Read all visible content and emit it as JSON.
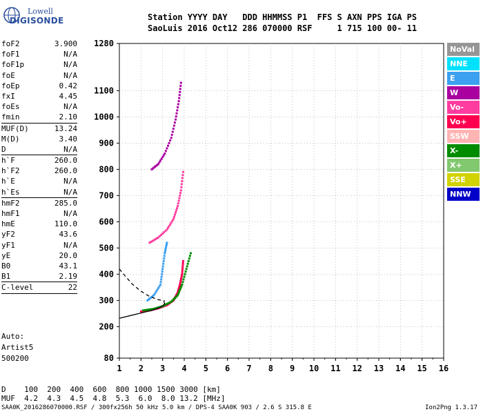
{
  "logo": {
    "top": "Lowell",
    "main": "DIGISONDE"
  },
  "header": {
    "line1": "Station YYYY DAY   DDD HHMMSS P1  FFS S AXN PPS IGA PS",
    "line2": "SaoLuis 2016 Oct12 286 070000 RSF     1 715 100 00- 11"
  },
  "params_group1": [
    {
      "label": "foF2",
      "value": "3.900"
    },
    {
      "label": "foF1",
      "value": "N/A"
    },
    {
      "label": "foF1p",
      "value": "N/A"
    },
    {
      "label": "foE",
      "value": "N/A"
    },
    {
      "label": "foEp",
      "value": "0.42"
    },
    {
      "label": "fxI",
      "value": "4.45"
    },
    {
      "label": "foEs",
      "value": "N/A"
    },
    {
      "label": "fmin",
      "value": "2.10"
    }
  ],
  "params_group2": [
    {
      "label": "MUF(D)",
      "value": "13.24"
    },
    {
      "label": "M(D)",
      "value": "3.40"
    },
    {
      "label": "D",
      "value": "N/A"
    }
  ],
  "params_group3": [
    {
      "label": "h`F",
      "value": "260.0"
    },
    {
      "label": "h`F2",
      "value": "260.0"
    },
    {
      "label": "h`E",
      "value": "N/A"
    },
    {
      "label": "h`Es",
      "value": "N/A"
    }
  ],
  "params_group4": [
    {
      "label": "hmF2",
      "value": "285.0"
    },
    {
      "label": "hmF1",
      "value": "N/A"
    },
    {
      "label": "hmE",
      "value": "110.0"
    },
    {
      "label": "yF2",
      "value": "43.6"
    },
    {
      "label": "yF1",
      "value": "N/A"
    },
    {
      "label": "yE",
      "value": "20.0"
    },
    {
      "label": "B0",
      "value": "43.1"
    },
    {
      "label": "B1",
      "value": "2.19"
    }
  ],
  "params_group5": [
    {
      "label": "C-level",
      "value": "22"
    }
  ],
  "extra": {
    "auto": "Auto:",
    "artist": "Artist5",
    "code": "500200"
  },
  "muf_table": {
    "line1": "D    100  200  400  600  800 1000 1500 3000 [km]",
    "line2": "MUF  4.2  4.3  4.5  4.8  5.3  6.0  8.0 13.2 [MHz]"
  },
  "footer": "SAA0K_2016286070000.RSF / 300fx256h 50 kHz 5.0 km / DPS-4 SAA0K 903 / 2.6 S 315.8 E",
  "version": "Ion2Png 1.3.17",
  "legend": [
    {
      "label": "NoVal",
      "color": "#969696"
    },
    {
      "label": "NNE",
      "color": "#00e1ff"
    },
    {
      "label": "E",
      "color": "#3ca0f0"
    },
    {
      "label": "W",
      "color": "#aa00a0"
    },
    {
      "label": "Vo-",
      "color": "#ff3ca0"
    },
    {
      "label": "Vo+",
      "color": "#ff0050"
    },
    {
      "label": "SSW",
      "color": "#ffb4b4"
    },
    {
      "label": "X-",
      "color": "#008c00"
    },
    {
      "label": "X+",
      "color": "#82c86e"
    },
    {
      "label": "SSE",
      "color": "#d2d200"
    },
    {
      "label": "NNW",
      "color": "#0000c8"
    }
  ],
  "chart_data": {
    "type": "scatter",
    "xlim": [
      1,
      16
    ],
    "ylim": [
      80,
      1280
    ],
    "x_ticks": [
      "1",
      "2",
      "3",
      "4",
      "5",
      "6",
      "7",
      "8",
      "9",
      "10",
      "11",
      "12",
      "13",
      "14",
      "15",
      "16"
    ],
    "y_ticks": [
      "80",
      "200",
      "300",
      "400",
      "500",
      "600",
      "700",
      "800",
      "900",
      "1000",
      "1100",
      "1280"
    ],
    "y_tick_values": [
      80,
      200,
      300,
      400,
      500,
      600,
      700,
      800,
      900,
      1000,
      1100,
      1280
    ],
    "grid": true,
    "traces": [
      {
        "name": "F2 trace",
        "color": "#ff0050",
        "points": [
          [
            2.0,
            258
          ],
          [
            2.4,
            262
          ],
          [
            2.8,
            270
          ],
          [
            3.2,
            282
          ],
          [
            3.5,
            300
          ],
          [
            3.7,
            330
          ],
          [
            3.8,
            360
          ],
          [
            3.9,
            400
          ],
          [
            3.95,
            450
          ]
        ]
      },
      {
        "name": "F2 trace",
        "color": "#008c00",
        "points": [
          [
            2.1,
            262
          ],
          [
            2.6,
            268
          ],
          [
            3.0,
            278
          ],
          [
            3.4,
            295
          ],
          [
            3.7,
            320
          ],
          [
            3.9,
            360
          ],
          [
            4.1,
            420
          ],
          [
            4.3,
            480
          ]
        ]
      },
      {
        "name": "F2 trace",
        "color": "#3ca0f0",
        "points": [
          [
            2.3,
            300
          ],
          [
            2.6,
            320
          ],
          [
            2.9,
            360
          ],
          [
            3.0,
            420
          ],
          [
            3.1,
            480
          ],
          [
            3.2,
            520
          ]
        ]
      },
      {
        "name": "2F trace",
        "color": "#ff3ca0",
        "points": [
          [
            2.4,
            520
          ],
          [
            2.8,
            540
          ],
          [
            3.2,
            570
          ],
          [
            3.5,
            610
          ],
          [
            3.7,
            660
          ],
          [
            3.85,
            720
          ],
          [
            3.95,
            790
          ]
        ]
      },
      {
        "name": "3F trace",
        "color": "#aa00a0",
        "points": [
          [
            2.5,
            800
          ],
          [
            2.8,
            820
          ],
          [
            3.1,
            860
          ],
          [
            3.4,
            920
          ],
          [
            3.6,
            990
          ],
          [
            3.75,
            1060
          ],
          [
            3.85,
            1130
          ]
        ]
      }
    ],
    "profile_curve": [
      [
        1.0,
        232
      ],
      [
        1.5,
        242
      ],
      [
        2.0,
        252
      ],
      [
        2.5,
        262
      ],
      [
        2.8,
        270
      ],
      [
        3.0,
        279
      ],
      [
        3.1,
        288
      ],
      [
        3.05,
        296
      ]
    ],
    "dashed_curve": [
      [
        1.0,
        420
      ],
      [
        1.3,
        390
      ],
      [
        1.6,
        362
      ],
      [
        2.0,
        335
      ],
      [
        2.4,
        315
      ],
      [
        2.8,
        303
      ],
      [
        3.1,
        298
      ]
    ]
  }
}
